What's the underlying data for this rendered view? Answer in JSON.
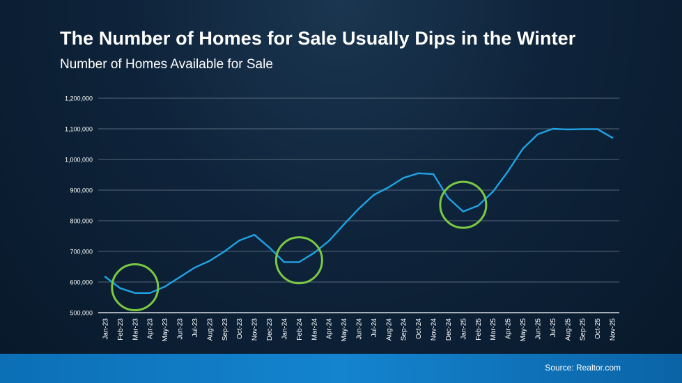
{
  "header": {
    "title": "The Number of Homes for Sale Usually Dips in the Winter",
    "subtitle": "Number of Homes Available for Sale"
  },
  "footer": {
    "source": "Source: Realtor.com"
  },
  "colors": {
    "line": "#1fa3e3",
    "highlight_circle": "#7ac943",
    "grid": "#6e7f8f",
    "text": "#ffffff"
  },
  "chart_data": {
    "type": "line",
    "title": "The Number of Homes for Sale Usually Dips in the Winter",
    "subtitle": "Number of Homes Available for Sale",
    "xlabel": "",
    "ylabel": "",
    "ylim": [
      500000,
      1200000
    ],
    "yticks": [
      500000,
      600000,
      700000,
      800000,
      900000,
      1000000,
      1100000,
      1200000
    ],
    "ytick_labels": [
      "500,000",
      "600,000",
      "700,000",
      "800,000",
      "900,000",
      "1,000,000",
      "1,100,000",
      "1,200,000"
    ],
    "grid": true,
    "legend": "none",
    "categories": [
      "Jan-23",
      "Feb-23",
      "Mar-23",
      "Apr-23",
      "May-23",
      "Jun-23",
      "Jul-23",
      "Aug-23",
      "Sep-23",
      "Oct-23",
      "Nov-23",
      "Dec-23",
      "Jan-24",
      "Feb-24",
      "Mar-24",
      "Apr-24",
      "May-24",
      "Jun-24",
      "Jul-24",
      "Aug-24",
      "Sep-24",
      "Oct-24",
      "Nov-24",
      "Dec-24",
      "Jan-25",
      "Feb-25",
      "Mar-25",
      "Apr-25",
      "May-25",
      "Jun-25",
      "Jul-25",
      "Aug-25",
      "Sep-25",
      "Oct-25",
      "Nov-25"
    ],
    "values": [
      617000,
      580000,
      564000,
      564000,
      585000,
      616000,
      647000,
      669000,
      700000,
      736000,
      754000,
      713000,
      665000,
      665000,
      695000,
      734000,
      788000,
      839000,
      884000,
      909000,
      940000,
      955000,
      952000,
      874000,
      830000,
      849000,
      895000,
      961000,
      1035000,
      1082000,
      1100000,
      1098000,
      1099000,
      1099000,
      1071000
    ],
    "annotations": [
      {
        "type": "circle",
        "center_category": "Mar-23",
        "center_value": 583000
      },
      {
        "type": "circle",
        "center_category": "Feb-24",
        "center_value": 671000
      },
      {
        "type": "circle",
        "center_category": "Jan-25",
        "center_value": 852000
      }
    ]
  }
}
